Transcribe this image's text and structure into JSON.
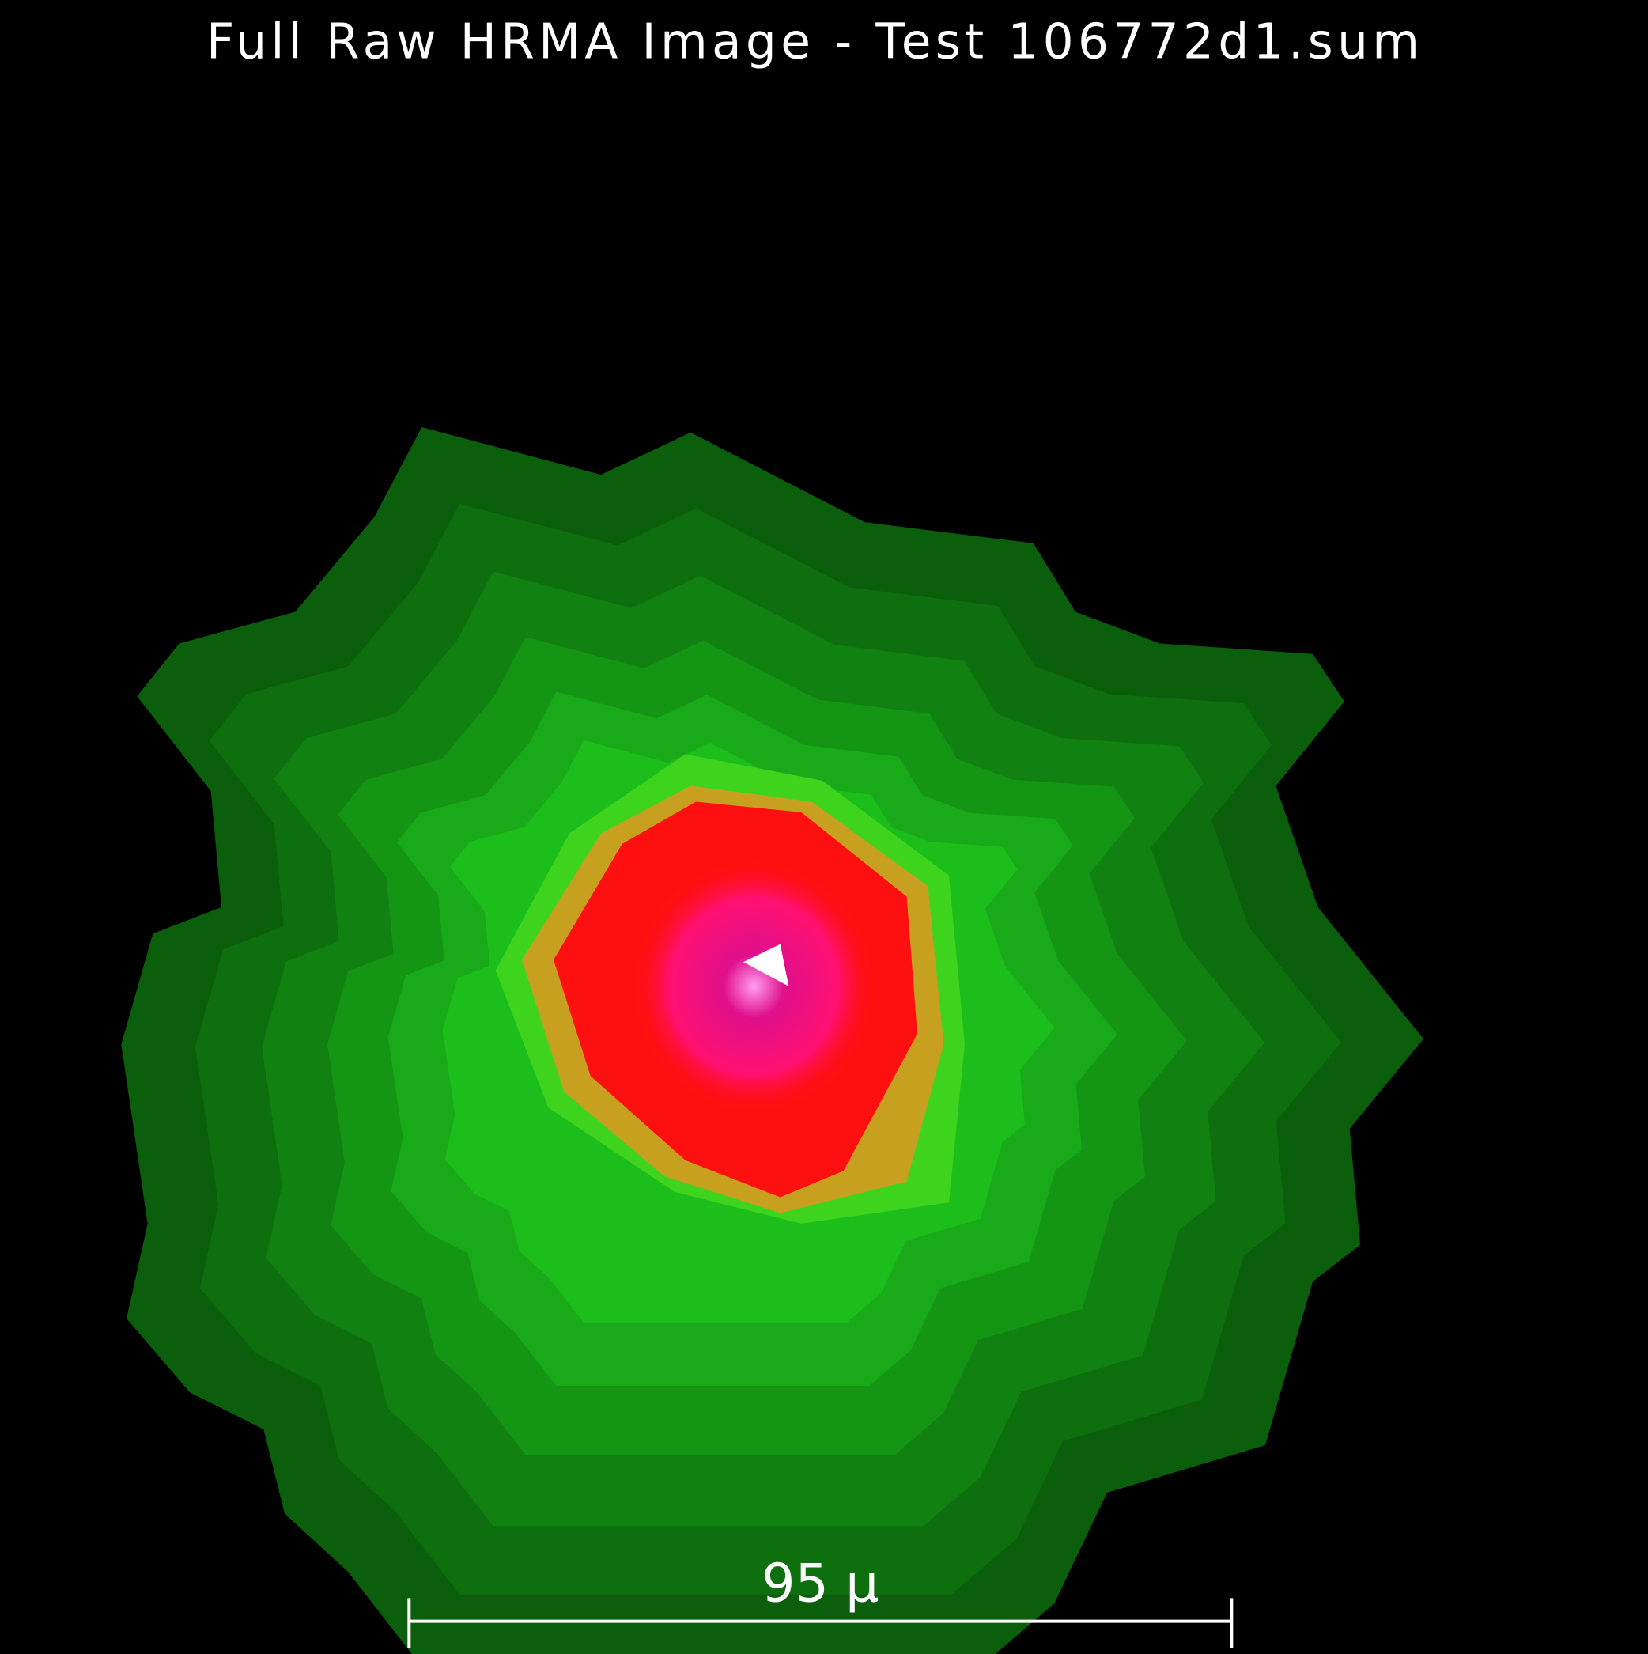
{
  "title": "Full Raw HRMA Image - Test 106772d1.sum",
  "scale_bar": {
    "label": "95 μ"
  }
}
